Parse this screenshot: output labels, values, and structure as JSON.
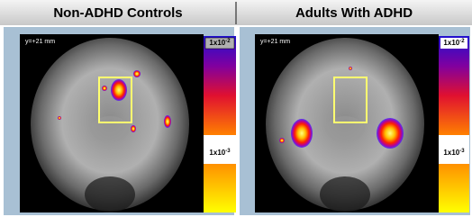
{
  "panels": [
    {
      "title": "Non-ADHD Controls",
      "coordinate": "y=+21 mm",
      "scale_top": {
        "base": "1x10",
        "exp": "-2"
      },
      "scale_bottom": {
        "base": "1x10",
        "exp": "-3"
      }
    },
    {
      "title": "Adults With ADHD",
      "coordinate": "y=+21 mm",
      "scale_top": {
        "base": "1x10",
        "exp": "-2"
      },
      "scale_bottom": {
        "base": "1x10",
        "exp": "-3"
      }
    }
  ]
}
